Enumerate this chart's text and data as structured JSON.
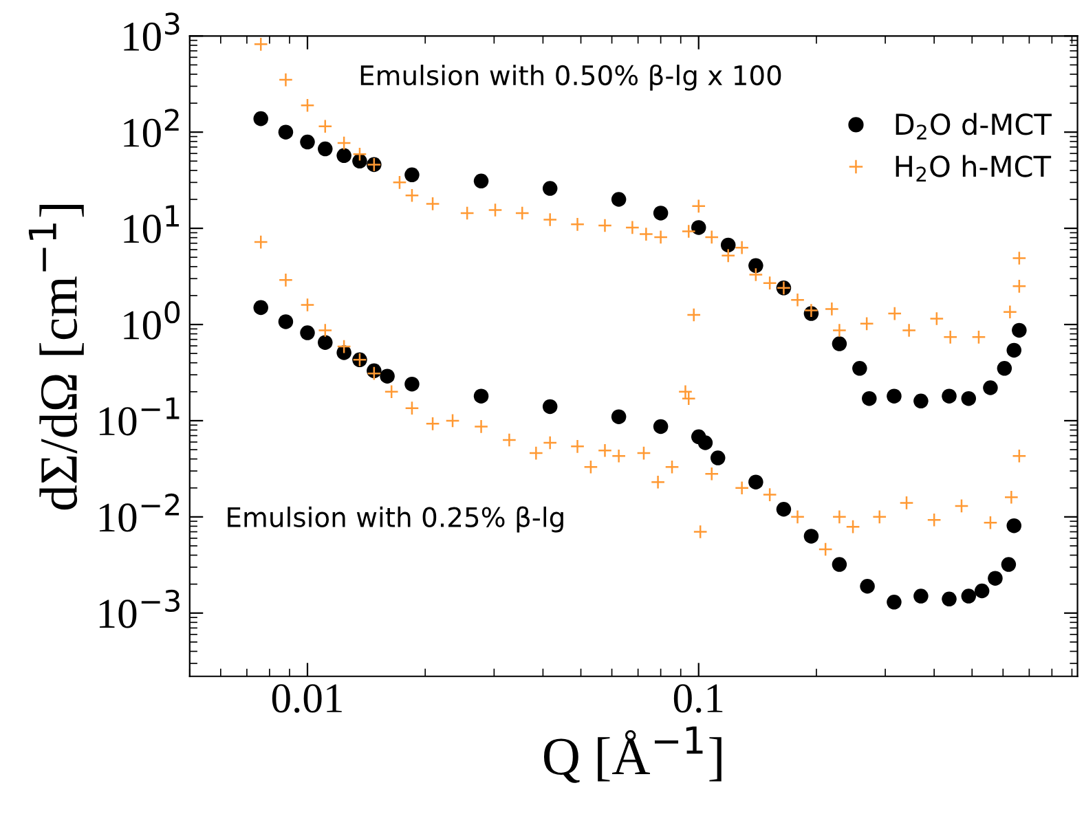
{
  "chart_data": {
    "type": "scatter",
    "xlabel": "Q [Å$^{−1}$]",
    "ylabel": "dΣ/dΩ [cm$^{−1}$]",
    "annotations": [
      "Emulsion with 0.50% β-lg x 100",
      "Emulsion with 0.25% β-lg"
    ],
    "log": "xy",
    "xlim": [
      0.005,
      0.93
    ],
    "xticks": [
      0.01,
      0.1
    ],
    "ylim": [
      0.00022,
      1000
    ],
    "yticks": [
      {
        "value": 0.001,
        "label": "10$^{−3}$"
      },
      {
        "value": 0.01,
        "label": "10$^{−2}$"
      },
      {
        "value": 0.1,
        "label": "10$^{−1}$"
      },
      {
        "value": 1,
        "label": "10$^{0}$"
      },
      {
        "value": 10,
        "label": "10$^{1}$"
      },
      {
        "value": 100,
        "label": "10$^{2}$"
      },
      {
        "value": 1000,
        "label": "10$^{3}$"
      }
    ],
    "legend": "top right",
    "grid": false,
    "series": [
      {
        "name": "D$_{2}$O d-MCT",
        "color": "#000000",
        "marker": "circle",
        "x": [
          0.0076,
          0.0088,
          0.01,
          0.0111,
          0.0124,
          0.0136,
          0.0148,
          0.0185,
          0.0278,
          0.0417,
          0.0625,
          0.08,
          0.1,
          0.119,
          0.14,
          0.165,
          0.194,
          0.229,
          0.258,
          0.273,
          0.316,
          0.37,
          0.437,
          0.49,
          0.557,
          0.605,
          0.64,
          0.66
        ],
        "values": [
          138,
          100,
          79,
          67,
          57,
          50,
          46,
          36,
          31,
          26,
          20,
          14.4,
          10.2,
          6.7,
          4.1,
          2.4,
          1.3,
          0.63,
          0.35,
          0.17,
          0.18,
          0.16,
          0.18,
          0.17,
          0.22,
          0.35,
          0.54,
          0.87
        ]
      },
      {
        "name": "H$_{2}$O h-MCT",
        "color": "#ff9933",
        "marker": "cross",
        "x": [
          0.0076,
          0.0088,
          0.01,
          0.0111,
          0.0124,
          0.0136,
          0.0148,
          0.0172,
          0.0185,
          0.0209,
          0.0256,
          0.0302,
          0.0354,
          0.0417,
          0.049,
          0.0576,
          0.0677,
          0.0734,
          0.08,
          0.0943,
          0.0972,
          0.1,
          0.108,
          0.119,
          0.129,
          0.14,
          0.152,
          0.165,
          0.179,
          0.194,
          0.219,
          0.229,
          0.269,
          0.317,
          0.345,
          0.406,
          0.44,
          0.52,
          0.625,
          0.66,
          0.66
        ],
        "values": [
          820,
          350,
          190,
          115,
          77,
          59,
          46,
          30,
          22,
          18,
          14.4,
          15.5,
          14.4,
          12.3,
          11,
          10.7,
          10.2,
          8.7,
          8.1,
          9.3,
          1.26,
          17,
          8.1,
          5.2,
          6.3,
          3.3,
          2.7,
          2.4,
          1.8,
          1.4,
          1.45,
          0.87,
          1.02,
          1.3,
          0.87,
          1.15,
          0.74,
          0.74,
          1.35,
          4.9,
          2.5
        ]
      },
      {
        "color": "#000000",
        "marker": "circle",
        "x": [
          0.0076,
          0.0088,
          0.01,
          0.0111,
          0.0124,
          0.0136,
          0.0148,
          0.016,
          0.0185,
          0.0278,
          0.0417,
          0.0625,
          0.08,
          0.1,
          0.104,
          0.112,
          0.14,
          0.165,
          0.194,
          0.229,
          0.27,
          0.316,
          0.37,
          0.437,
          0.49,
          0.53,
          0.573,
          0.62,
          0.64
        ],
        "values": [
          1.5,
          1.07,
          0.82,
          0.65,
          0.51,
          0.43,
          0.33,
          0.29,
          0.24,
          0.18,
          0.14,
          0.11,
          0.087,
          0.068,
          0.059,
          0.041,
          0.023,
          0.012,
          0.0063,
          0.0032,
          0.0019,
          0.0013,
          0.0015,
          0.0014,
          0.0015,
          0.0017,
          0.0023,
          0.0032,
          0.0081
        ]
      },
      {
        "color": "#ff9933",
        "marker": "cross",
        "x": [
          0.0076,
          0.0088,
          0.01,
          0.0111,
          0.0124,
          0.0136,
          0.0148,
          0.0164,
          0.0185,
          0.0209,
          0.0235,
          0.0278,
          0.0328,
          0.0384,
          0.0417,
          0.049,
          0.053,
          0.0576,
          0.0625,
          0.0724,
          0.0787,
          0.0855,
          0.0925,
          0.0943,
          0.101,
          0.108,
          0.129,
          0.152,
          0.179,
          0.211,
          0.229,
          0.248,
          0.29,
          0.34,
          0.4,
          0.47,
          0.557,
          0.63,
          0.66
        ],
        "values": [
          7.2,
          2.9,
          1.6,
          0.87,
          0.59,
          0.43,
          0.31,
          0.2,
          0.135,
          0.093,
          0.1,
          0.087,
          0.063,
          0.046,
          0.059,
          0.054,
          0.033,
          0.049,
          0.043,
          0.046,
          0.023,
          0.033,
          0.2,
          0.17,
          0.007,
          0.028,
          0.02,
          0.017,
          0.01,
          0.0046,
          0.01,
          0.0079,
          0.01,
          0.014,
          0.0093,
          0.013,
          0.0087,
          0.016,
          0.043
        ]
      }
    ]
  }
}
